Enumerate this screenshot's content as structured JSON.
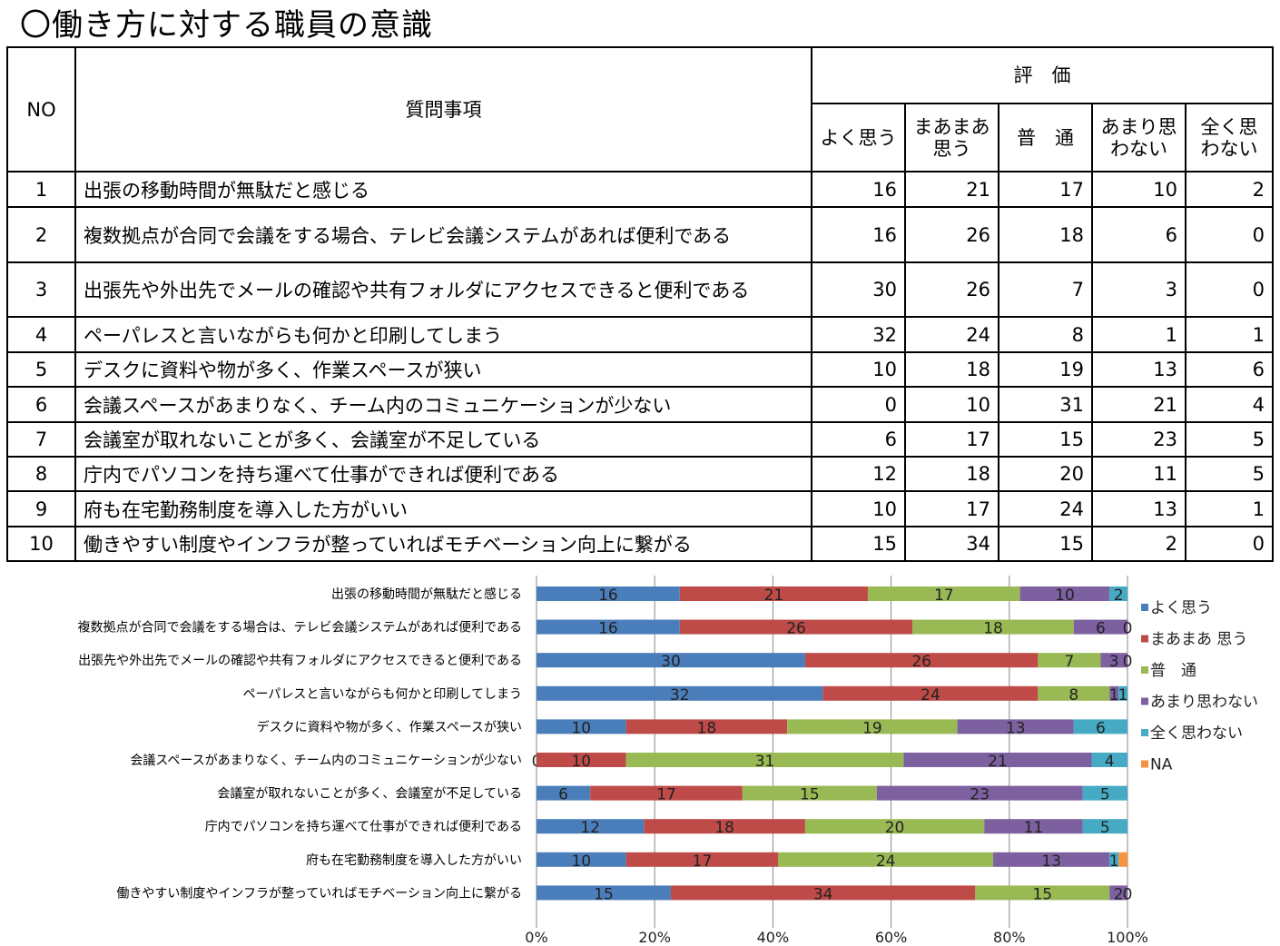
{
  "title": "〇働き方に対する職員の意識",
  "table": {
    "headers": {
      "no": "NO",
      "question": "質問事項",
      "evaluation": "評　価",
      "cols": [
        "よく思う",
        "まあまあ\n思う",
        "普　通",
        "あまり思\nわない",
        "全く思\nわない"
      ]
    },
    "rows": [
      {
        "no": "1",
        "q": "出張の移動時間が無駄だと感じる",
        "v": [
          16,
          21,
          17,
          10,
          2
        ]
      },
      {
        "no": "2",
        "q": "複数拠点が合同で会議をする場合、テレビ会議システムがあれば便利である",
        "v": [
          16,
          26,
          18,
          6,
          0
        ]
      },
      {
        "no": "3",
        "q": "出張先や外出先でメールの確認や共有フォルダにアクセスできると便利である",
        "v": [
          30,
          26,
          7,
          3,
          0
        ]
      },
      {
        "no": "4",
        "q": "ペーパレスと言いながらも何かと印刷してしまう",
        "v": [
          32,
          24,
          8,
          1,
          1
        ]
      },
      {
        "no": "5",
        "q": "デスクに資料や物が多く、作業スペースが狭い",
        "v": [
          10,
          18,
          19,
          13,
          6
        ]
      },
      {
        "no": "6",
        "q": "会議スペースがあまりなく、チーム内のコミュニケーションが少ない",
        "v": [
          0,
          10,
          31,
          21,
          4
        ]
      },
      {
        "no": "7",
        "q": "会議室が取れないことが多く、会議室が不足している",
        "v": [
          6,
          17,
          15,
          23,
          5
        ]
      },
      {
        "no": "8",
        "q": "庁内でパソコンを持ち運べて仕事ができれば便利である",
        "v": [
          12,
          18,
          20,
          11,
          5
        ]
      },
      {
        "no": "9",
        "q": "府も在宅勤務制度を導入した方がいい",
        "v": [
          10,
          17,
          24,
          13,
          1
        ]
      },
      {
        "no": "10",
        "q": "働きやすい制度やインフラが整っていればモチベーション向上に繋がる",
        "v": [
          15,
          34,
          15,
          2,
          0
        ]
      }
    ]
  },
  "chart_data": {
    "type": "bar",
    "orientation": "horizontal-100%-stacked",
    "categories": [
      "出張の移動時間が無駄だと感じる",
      "複数拠点が合同で会議をする場合は、テレビ会議システムがあれば便利である",
      "出張先や外出先でメールの確認や共有フォルダにアクセスできると便利である",
      "ペーパレスと言いながらも何かと印刷してしまう",
      "デスクに資料や物が多く、作業スペースが狭い",
      "会議スペースがあまりなく、チーム内のコミュニケーションが少ない",
      "会議室が取れないことが多く、会議室が不足している",
      "庁内でパソコンを持ち運べて仕事ができれば便利である",
      "府も在宅勤務制度を導入した方がいい",
      "働きやすい制度やインフラが整っていればモチベーション向上に繋がる"
    ],
    "series": [
      {
        "name": "よく思う",
        "color": "#4a7ebb",
        "values": [
          16,
          16,
          30,
          32,
          10,
          0,
          6,
          12,
          10,
          15
        ]
      },
      {
        "name": "まあまあ 思う",
        "color": "#be4b48",
        "values": [
          21,
          26,
          26,
          24,
          18,
          10,
          17,
          18,
          17,
          34
        ]
      },
      {
        "name": "普　通",
        "color": "#98b954",
        "values": [
          17,
          18,
          7,
          8,
          19,
          31,
          15,
          20,
          24,
          15
        ]
      },
      {
        "name": "あまり思わない",
        "color": "#7d60a0",
        "values": [
          10,
          6,
          3,
          1,
          13,
          21,
          23,
          11,
          13,
          2
        ]
      },
      {
        "name": "全く思わない",
        "color": "#46aac5",
        "values": [
          2,
          0,
          0,
          1,
          6,
          4,
          5,
          5,
          1,
          0
        ]
      },
      {
        "name": "NA",
        "color": "#f69240",
        "values": [
          0,
          0,
          0,
          0,
          0,
          0,
          0,
          0,
          1,
          0
        ]
      }
    ],
    "xticks": [
      "0%",
      "20%",
      "40%",
      "60%",
      "80%",
      "100%"
    ],
    "xlim": [
      0,
      100
    ],
    "legend": "right",
    "grid": true
  }
}
